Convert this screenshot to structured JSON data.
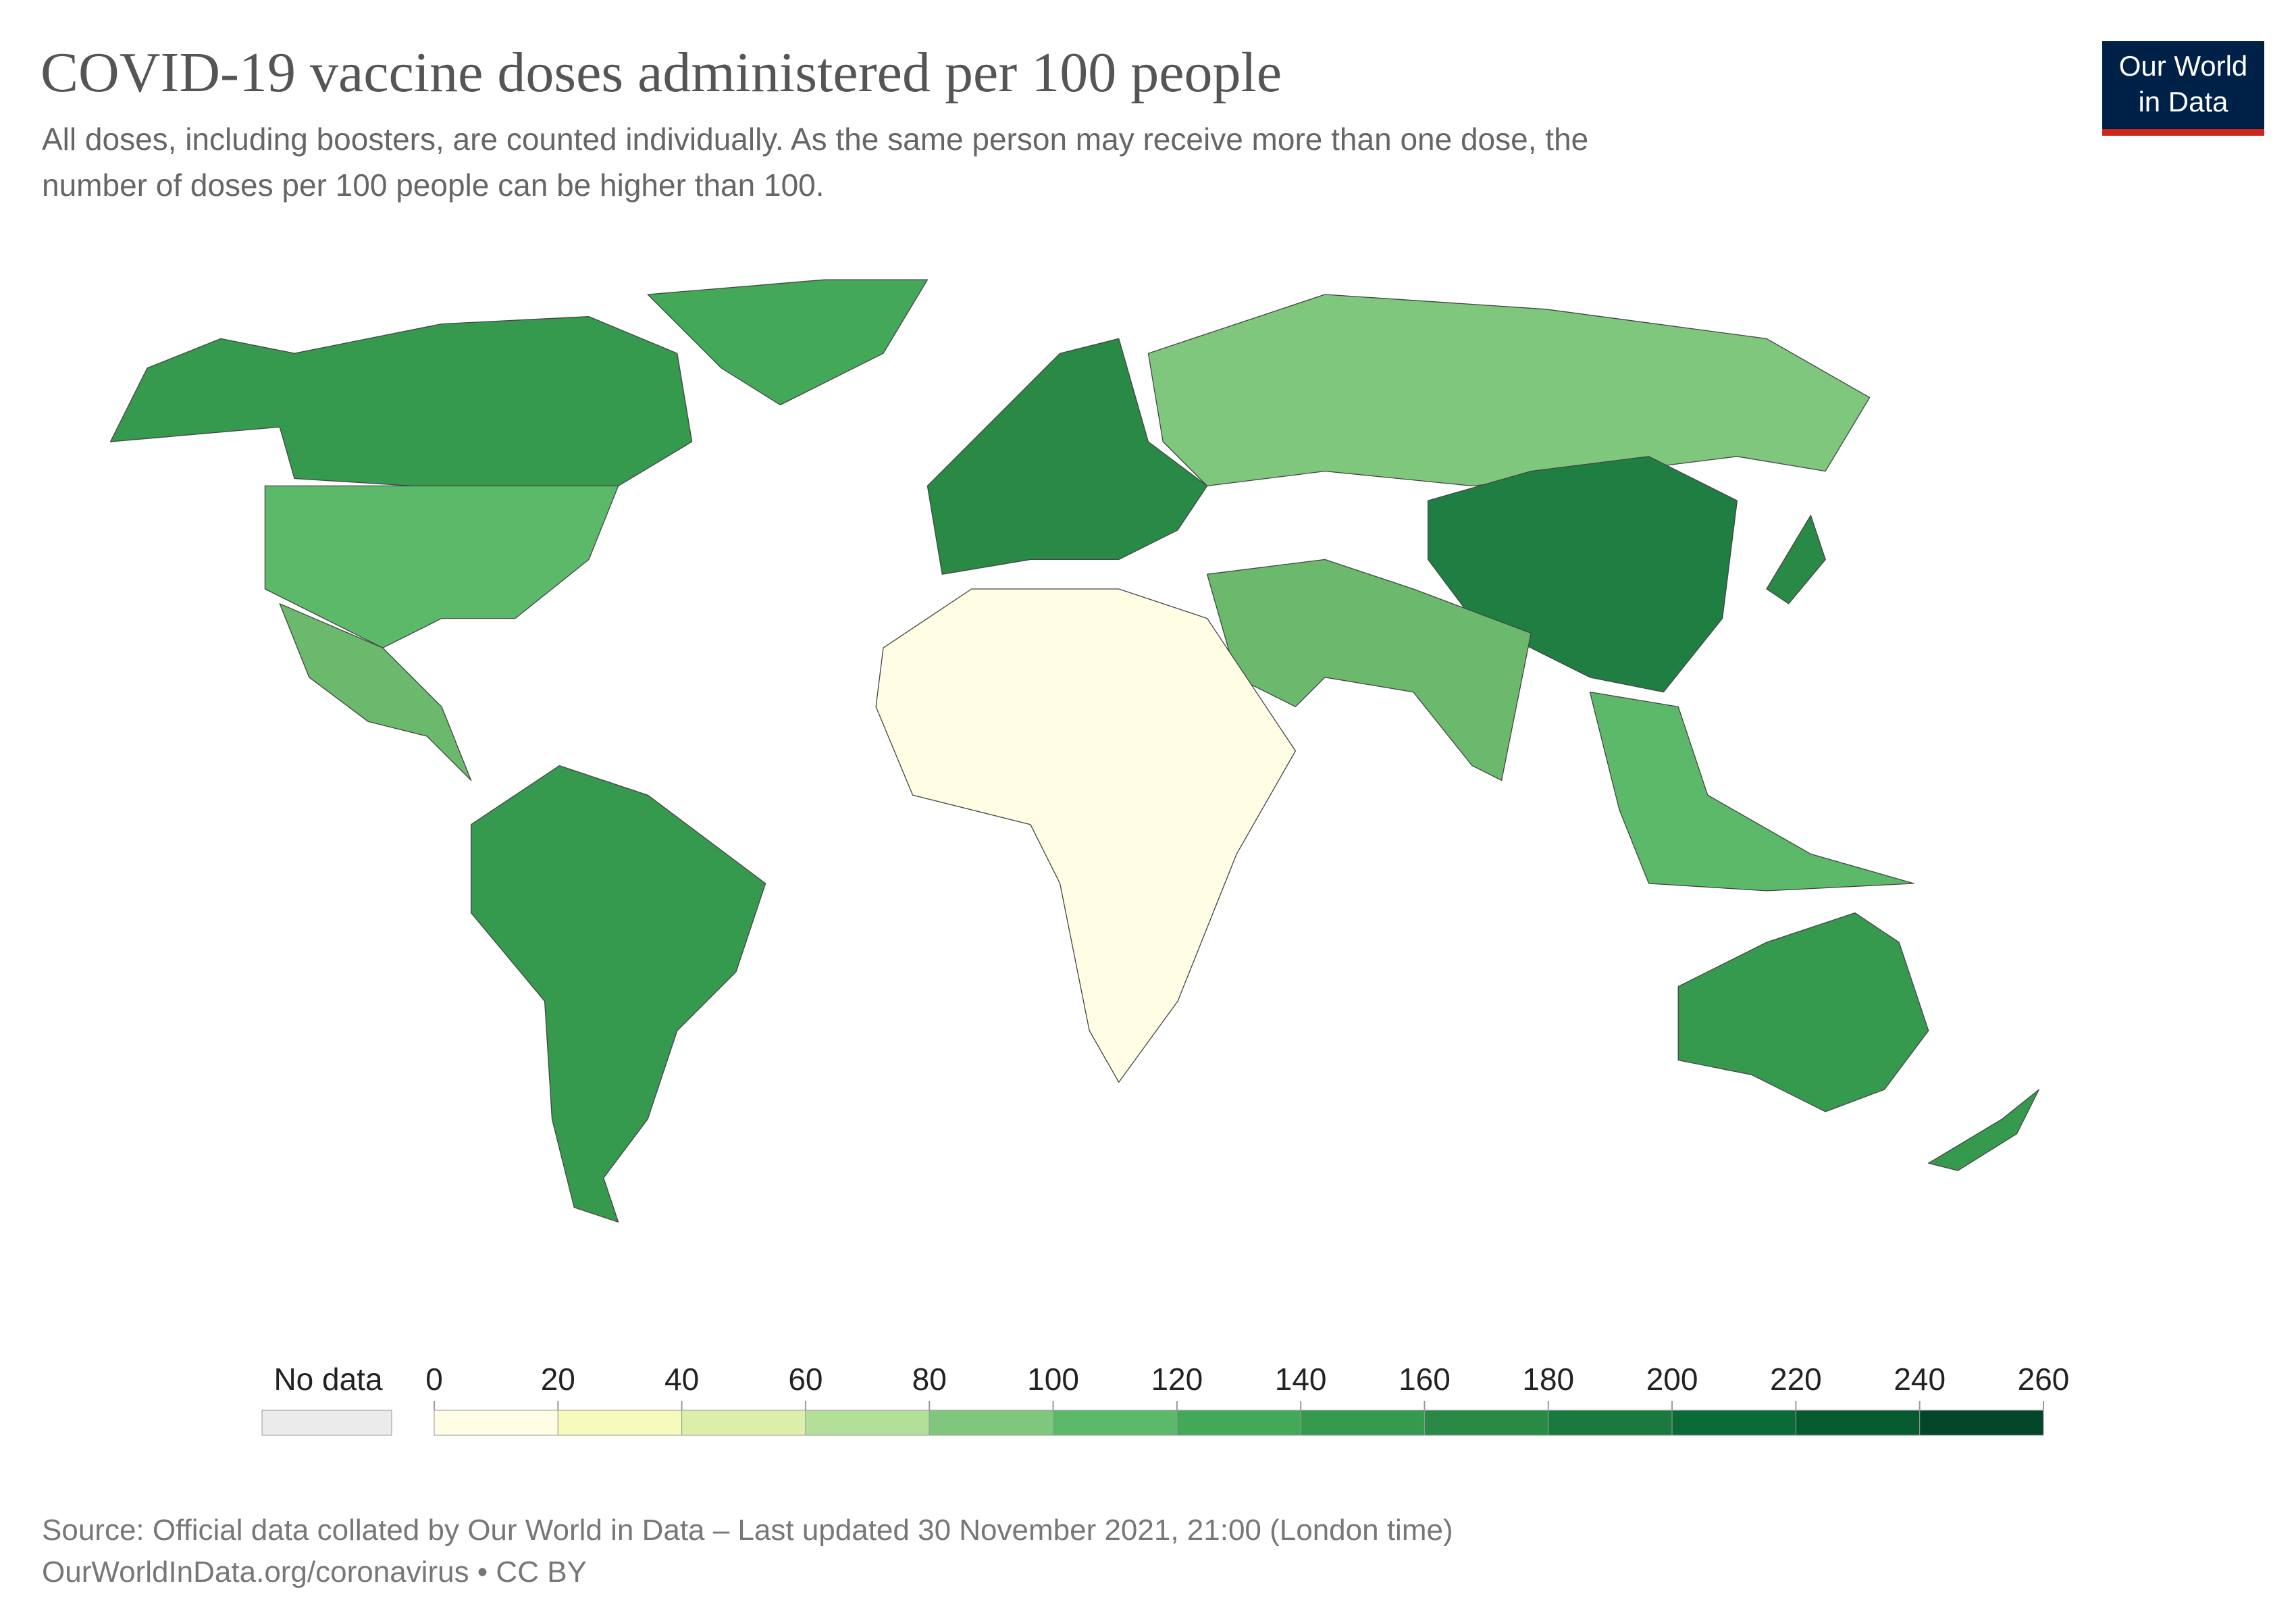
{
  "header": {
    "title": "COVID-19 vaccine doses administered per 100 people",
    "subtitle": [
      "All doses, including boosters, are counted individually. As the same person may receive more than one dose, the",
      "number of doses per 100 people can be higher than 100."
    ],
    "logo": [
      "Our World",
      "in Data"
    ]
  },
  "legend": {
    "no_data_label": "No data",
    "no_data_color": "#ebebeb",
    "bins": [
      0,
      20,
      40,
      60,
      80,
      100,
      120,
      140,
      160,
      180,
      200,
      220,
      240,
      260
    ],
    "colors": [
      "#fffde3",
      "#f6fabb",
      "#dbefa9",
      "#b3df98",
      "#7fc77d",
      "#5db96a",
      "#43a857",
      "#359a4e",
      "#288a45",
      "#1a7a3e",
      "#0b6b36",
      "#075a2f",
      "#03462a"
    ]
  },
  "footer": {
    "source": "Source: Official data collated by Our World in Data – Last updated 30 November 2021, 21:00 (London time)",
    "url": "OurWorldInData.org/coronavirus • CC BY"
  }
}
